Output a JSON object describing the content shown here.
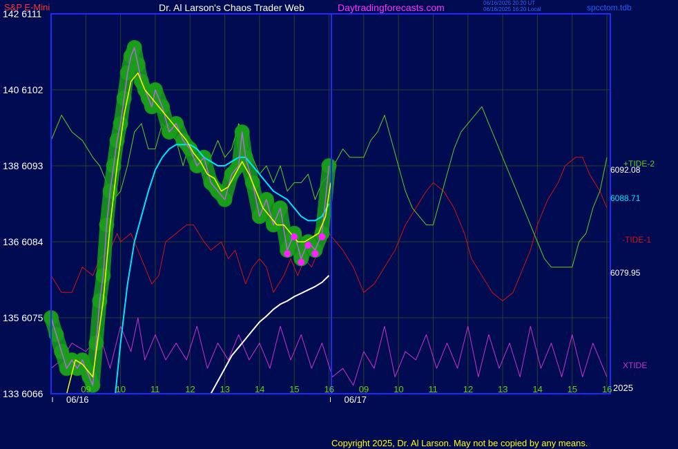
{
  "header": {
    "instrument": "S&P E-Mini",
    "author": "Dr. Al Larson's Chaos Trader Web",
    "site": "Daytradingforecasts.com",
    "timestamp_utc": "06/16/2025 20:20 UT",
    "timestamp_local": "06/16/2025 16:20 Local",
    "chart_file": "spcctom.tdb"
  },
  "footer": {
    "copyright": "Copyright 2025, Dr. Al Larson. May not be copied by any means."
  },
  "colors": {
    "background": "#000b52",
    "frame": "#1e2bff",
    "grid": "#2d3f28",
    "price_bars": "#b36bd8",
    "glow": "#1a9e1a",
    "fast_avg": "#ffff00",
    "slow_avg": "#00e5ff",
    "tide2": "#5fd11f",
    "tide1": "#d01414",
    "xtide": "#cc33cc",
    "white_curve": "#ffffff",
    "blue_curve": "#2030ff",
    "marker": "#ff22ff"
  },
  "chart_data": {
    "type": "line",
    "title": "S&P E-Mini",
    "y_axis_left": {
      "ticks": [
        {
          "bond": "133",
          "value": 6066
        },
        {
          "bond": "135",
          "value": 6075
        },
        {
          "bond": "136",
          "value": 6084
        },
        {
          "bond": "138",
          "value": 6093
        },
        {
          "bond": "140",
          "value": 6102
        },
        {
          "bond": "142",
          "value": 6111
        }
      ]
    },
    "ylim": [
      6066,
      6111
    ],
    "x_axis": {
      "hour_labels": [
        "09",
        "10",
        "11",
        "12",
        "13",
        "14",
        "15",
        "16",
        "09",
        "10",
        "11",
        "12",
        "13",
        "14",
        "15",
        "16"
      ],
      "date_labels": [
        "06/16",
        "06/17"
      ],
      "xlim": [
        8,
        24.1
      ],
      "year_label": "2025"
    },
    "right_labels": [
      {
        "text": "+TIDE-2",
        "color": "#5fd11f"
      },
      {
        "text": "6092.08",
        "color": "#ffffff"
      },
      {
        "text": "6088.71",
        "color": "#00e5ff"
      },
      {
        "text": "-TIDE-1",
        "color": "#d01414"
      },
      {
        "text": "6079.95",
        "color": "#ffffff"
      },
      {
        "text": "XTIDE",
        "color": "#cc33cc"
      }
    ],
    "series": [
      {
        "name": "Price",
        "x": [
          8.0,
          8.15,
          8.3,
          8.45,
          8.6,
          8.75,
          8.9,
          9.0,
          9.1,
          9.2,
          9.3,
          9.4,
          9.5,
          9.6,
          9.7,
          9.8,
          9.9,
          10.0,
          10.1,
          10.2,
          10.3,
          10.4,
          10.5,
          10.6,
          10.7,
          10.8,
          10.9,
          11.0,
          11.2,
          11.4,
          11.6,
          11.8,
          12.0,
          12.2,
          12.4,
          12.6,
          12.8,
          13.0,
          13.2,
          13.4,
          13.5,
          13.6,
          13.8,
          14.0,
          14.2,
          14.4,
          14.6,
          14.8,
          15.0,
          15.2,
          15.4,
          15.6,
          15.8,
          16.0
        ],
        "y": [
          6075,
          6073,
          6071,
          6069,
          6070,
          6069,
          6070,
          6069,
          6068,
          6067,
          6072,
          6077,
          6080,
          6086,
          6090,
          6093,
          6096,
          6098,
          6101,
          6104,
          6106,
          6107,
          6105,
          6103,
          6102,
          6101,
          6100,
          6102,
          6100,
          6097,
          6098,
          6096,
          6095,
          6093,
          6094,
          6091,
          6090,
          6089,
          6092,
          6093,
          6097,
          6094,
          6091,
          6087,
          6089,
          6086,
          6088,
          6083,
          6085,
          6082,
          6084,
          6083,
          6085,
          6093
        ]
      },
      {
        "name": "Fast average",
        "x": [
          8.45,
          8.7,
          8.9,
          9.0,
          9.2,
          9.3,
          9.5,
          9.7,
          9.9,
          10.1,
          10.3,
          10.5,
          10.7,
          10.9,
          11.1,
          11.3,
          11.5,
          11.7,
          11.9,
          12.1,
          12.3,
          12.5,
          12.7,
          12.9,
          13.1,
          13.3,
          13.5,
          13.7,
          13.9,
          14.1,
          14.3,
          14.5,
          14.7,
          14.9,
          15.1,
          15.3,
          15.5,
          15.7,
          15.9,
          16.05
        ],
        "y": [
          6066,
          6070,
          6069.5,
          6069,
          6068,
          6071,
          6077,
          6086,
          6093,
          6099,
          6103,
          6104,
          6102,
          6101,
          6100,
          6099,
          6098,
          6097,
          6096,
          6094.5,
          6093.5,
          6092,
          6091.5,
          6090,
          6090.5,
          6092,
          6093.5,
          6092,
          6090,
          6088,
          6087,
          6086,
          6086,
          6085,
          6084,
          6084,
          6084.5,
          6085,
          6087,
          6091
        ]
      },
      {
        "name": "Slow average",
        "x": [
          9.85,
          10.0,
          10.2,
          10.4,
          10.6,
          10.8,
          11.0,
          11.2,
          11.4,
          11.6,
          11.8,
          12.0,
          12.2,
          12.4,
          12.6,
          12.8,
          13.0,
          13.2,
          13.4,
          13.6,
          13.8,
          14.0,
          14.2,
          14.4,
          14.6,
          14.8,
          15.0,
          15.2,
          15.4,
          15.6,
          15.8,
          16.0
        ],
        "y": [
          6066,
          6072,
          6079,
          6084,
          6087,
          6090,
          6092.5,
          6094,
          6095,
          6095.5,
          6095.5,
          6095.5,
          6095,
          6094,
          6093.5,
          6093,
          6093,
          6093.5,
          6094,
          6094,
          6093,
          6092,
          6091,
          6090,
          6089.5,
          6089,
          6088,
          6087,
          6086.5,
          6086.5,
          6087,
          6088.5
        ]
      },
      {
        "name": "Price projection",
        "x": [
          12.6,
          12.8,
          13.0,
          13.2,
          13.4,
          13.6,
          13.8,
          14.0,
          14.2,
          14.4,
          14.6,
          14.8,
          15.0,
          15.2,
          15.4,
          15.6,
          15.8,
          16.0
        ],
        "y": [
          6066,
          6067.5,
          6069,
          6070.5,
          6071.5,
          6072.5,
          6073.5,
          6074.5,
          6075.2,
          6076,
          6076.6,
          6077,
          6077.5,
          6077.9,
          6078.3,
          6078.7,
          6079.2,
          6080
        ]
      },
      {
        "name": "+TIDE-2",
        "x": [
          8.0,
          8.3,
          8.6,
          8.9,
          9.2,
          9.4,
          9.6,
          9.8,
          10.0,
          10.2,
          10.4,
          10.6,
          10.8,
          11.0,
          11.2,
          11.4,
          11.6,
          11.8,
          12.0,
          12.2,
          12.4,
          12.6,
          12.8,
          13.0,
          13.2,
          13.4,
          13.6,
          13.8,
          14.0,
          14.2,
          14.4,
          14.6,
          14.8,
          15.0,
          15.2,
          15.4,
          15.6,
          15.8,
          16.0,
          16.4,
          16.6,
          17.0,
          17.2,
          17.4,
          17.6,
          17.8,
          18.0,
          18.2,
          18.4,
          18.6,
          18.8,
          19.0,
          19.2,
          19.4,
          19.6,
          19.8,
          20.0,
          20.2,
          20.4,
          20.6,
          20.8,
          21.0,
          21.2,
          21.4,
          21.6,
          21.8,
          22.0,
          22.2,
          22.4,
          22.6,
          22.8,
          23.0,
          23.2,
          23.4,
          23.6,
          23.8,
          24.0
        ],
        "y": [
          6096,
          6099,
          6097,
          6096,
          6094,
          6093,
          6091,
          6089,
          6090,
          6093,
          6097,
          6098,
          6095,
          6095,
          6098,
          6097,
          6096,
          6093,
          6096,
          6094,
          6092,
          6094,
          6096,
          6094,
          6095,
          6098,
          6096,
          6094,
          6092,
          6093,
          6091,
          6093,
          6090,
          6091,
          6091,
          6092,
          6089,
          6091,
          6092,
          6095,
          6094,
          6094,
          6096,
          6097,
          6099,
          6096,
          6093,
          6090,
          6088,
          6087,
          6086,
          6086,
          6089,
          6092,
          6095,
          6097,
          6098,
          6099,
          6100,
          6098,
          6096,
          6094,
          6092,
          6090,
          6088,
          6086,
          6084,
          6082,
          6081,
          6081,
          6081,
          6081,
          6084,
          6085,
          6088,
          6090,
          6094
        ]
      },
      {
        "name": "-TIDE-1",
        "x": [
          8.0,
          8.3,
          8.6,
          8.9,
          9.2,
          9.4,
          9.7,
          9.9,
          10.0,
          10.3,
          10.6,
          10.9,
          11.1,
          11.3,
          11.6,
          11.9,
          12.1,
          12.4,
          12.6,
          12.9,
          13.1,
          13.3,
          13.6,
          13.8,
          14.0,
          14.2,
          14.4,
          14.7,
          14.9,
          15.1,
          15.3,
          15.5,
          15.7,
          15.9,
          16.0,
          16.4,
          16.7,
          17.0,
          17.3,
          17.6,
          17.9,
          18.2,
          18.5,
          18.8,
          19.0,
          19.3,
          19.6,
          19.9,
          20.1,
          20.4,
          20.7,
          21.0,
          21.3,
          21.6,
          21.8,
          22.0,
          22.3,
          22.6,
          22.8,
          23.1,
          23.3,
          23.5,
          23.8,
          24.0
        ],
        "y": [
          6080,
          6078,
          6078,
          6081,
          6080,
          6082,
          6083,
          6085,
          6084,
          6085,
          6082,
          6079,
          6080,
          6084,
          6085,
          6086,
          6086,
          6084,
          6083,
          6084,
          6082,
          6083,
          6079,
          6081,
          6082,
          6081,
          6078,
          6080,
          6082,
          6080,
          6082,
          6081,
          6083,
          6084,
          6085,
          6083,
          6081,
          6078,
          6079,
          6081,
          6083,
          6086,
          6088,
          6090,
          6091,
          6090,
          6088,
          6085,
          6082,
          6080,
          6078,
          6077,
          6078,
          6081,
          6083,
          6086,
          6089,
          6091,
          6093,
          6094,
          6094,
          6092,
          6090,
          6088
        ]
      },
      {
        "name": "XTIDE",
        "x": [
          8.0,
          8.3,
          8.6,
          9.0,
          9.4,
          9.7,
          10.0,
          10.3,
          10.5,
          10.7,
          11.0,
          11.3,
          11.6,
          11.9,
          12.2,
          12.5,
          12.8,
          13.1,
          13.4,
          13.7,
          14.0,
          14.3,
          14.6,
          14.9,
          15.2,
          15.5,
          15.8,
          16.1,
          16.4,
          16.7,
          17.0,
          17.3,
          17.6,
          17.9,
          18.2,
          18.5,
          18.8,
          19.1,
          19.4,
          19.7,
          20.0,
          20.3,
          20.6,
          20.9,
          21.2,
          21.5,
          21.8,
          22.1,
          22.4,
          22.7,
          23.0,
          23.3,
          23.6,
          23.9,
          24.0
        ],
        "y": [
          6069,
          6070,
          6072,
          6071,
          6073,
          6069,
          6074,
          6071,
          6075,
          6070,
          6073,
          6070,
          6072,
          6070,
          6074,
          6069,
          6072,
          6070,
          6073,
          6070,
          6072,
          6069,
          6074,
          6070,
          6073,
          6069,
          6072,
          6068,
          6069,
          6067,
          6071,
          6069,
          6074,
          6068,
          6071,
          6070,
          6073,
          6069,
          6072,
          6069,
          6074,
          6068,
          6073,
          6069,
          6072,
          6068,
          6074,
          6069,
          6072,
          6068,
          6073,
          6068,
          6072,
          6069,
          6068
        ]
      }
    ],
    "grid": true
  }
}
